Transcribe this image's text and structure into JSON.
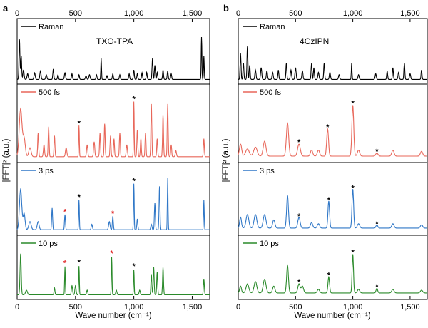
{
  "figure": {
    "panels": [
      {
        "letter": "a",
        "sample_label": "TXO-TPA",
        "ylabel": "|FFT|² (a.u.)",
        "xlabel": "Wave number (cm⁻¹)",
        "xlim": [
          0,
          1650
        ],
        "xticks": [
          0,
          500,
          1000,
          1500
        ],
        "xtick_labels": [
          "0",
          "500",
          "1,000",
          "1,500"
        ]
      },
      {
        "letter": "b",
        "sample_label": "4CzIPN",
        "ylabel": "|FFT|² (a.u.)",
        "xlabel": "Wave number (cm⁻¹)",
        "xlim": [
          0,
          1650
        ],
        "xticks": [
          0,
          500,
          1000,
          1500
        ],
        "xtick_labels": [
          "0",
          "500",
          "1,000",
          "1,500"
        ]
      }
    ]
  },
  "colors": {
    "raman": "#000000",
    "500fs": "#e8675a",
    "3ps": "#2f77c7",
    "10ps": "#2a8a2a",
    "star_black": "#000000",
    "star_red": "#e02020"
  },
  "chart_data": [
    {
      "type": "line",
      "panel": "a",
      "title": "TXO-TPA",
      "xlabel": "Wave number (cm⁻¹)",
      "ylabel": "|FFT|² (a.u.)",
      "xlim": [
        0,
        1650
      ],
      "series": [
        {
          "name": "Raman",
          "color_key": "raman",
          "baseline": 0.04,
          "peaks": [
            [
              20,
              0.85,
              4
            ],
            [
              35,
              0.5,
              4
            ],
            [
              55,
              0.2,
              5
            ],
            [
              90,
              0.12,
              5
            ],
            [
              150,
              0.14,
              5
            ],
            [
              200,
              0.18,
              5
            ],
            [
              250,
              0.1,
              5
            ],
            [
              310,
              0.22,
              4
            ],
            [
              350,
              0.1,
              4
            ],
            [
              410,
              0.14,
              5
            ],
            [
              470,
              0.12,
              4
            ],
            [
              530,
              0.1,
              4
            ],
            [
              590,
              0.08,
              5
            ],
            [
              620,
              0.1,
              5
            ],
            [
              680,
              0.1,
              4
            ],
            [
              720,
              0.45,
              3
            ],
            [
              770,
              0.08,
              4
            ],
            [
              820,
              0.12,
              4
            ],
            [
              880,
              0.1,
              4
            ],
            [
              960,
              0.12,
              4
            ],
            [
              1000,
              0.2,
              4
            ],
            [
              1030,
              0.12,
              4
            ],
            [
              1070,
              0.14,
              4
            ],
            [
              1110,
              0.15,
              4
            ],
            [
              1160,
              0.45,
              4
            ],
            [
              1180,
              0.3,
              4
            ],
            [
              1200,
              0.15,
              4
            ],
            [
              1250,
              0.2,
              4
            ],
            [
              1290,
              0.18,
              4
            ],
            [
              1320,
              0.12,
              4
            ],
            [
              1580,
              0.9,
              3
            ],
            [
              1600,
              0.5,
              3
            ]
          ],
          "stars": []
        },
        {
          "name": "500 fs",
          "color_key": "500fs",
          "baseline": 0.05,
          "peaks": [
            [
              30,
              0.8,
              12
            ],
            [
              60,
              0.3,
              10
            ],
            [
              110,
              0.15,
              10
            ],
            [
              180,
              0.4,
              4
            ],
            [
              230,
              0.2,
              5
            ],
            [
              270,
              0.5,
              4
            ],
            [
              320,
              0.35,
              4
            ],
            [
              420,
              0.15,
              6
            ],
            [
              530,
              0.52,
              3
            ],
            [
              600,
              0.2,
              5
            ],
            [
              660,
              0.25,
              5
            ],
            [
              710,
              0.4,
              4
            ],
            [
              750,
              0.55,
              4
            ],
            [
              800,
              0.35,
              4
            ],
            [
              830,
              0.3,
              4
            ],
            [
              880,
              0.4,
              4
            ],
            [
              940,
              0.2,
              5
            ],
            [
              1000,
              0.92,
              3
            ],
            [
              1030,
              0.45,
              4
            ],
            [
              1060,
              0.3,
              4
            ],
            [
              1100,
              0.4,
              4
            ],
            [
              1150,
              0.88,
              4
            ],
            [
              1200,
              0.3,
              4
            ],
            [
              1250,
              0.7,
              4
            ],
            [
              1290,
              0.88,
              4
            ],
            [
              1320,
              0.2,
              4
            ],
            [
              1360,
              0.1,
              5
            ],
            [
              1600,
              0.3,
              4
            ]
          ],
          "stars": [
            {
              "x": 530,
              "y": 0.52,
              "color": "star_black"
            },
            {
              "x": 1000,
              "y": 0.92,
              "color": "star_black"
            }
          ]
        },
        {
          "name": "3 ps",
          "color_key": "3ps",
          "baseline": 0.05,
          "peaks": [
            [
              30,
              0.75,
              10
            ],
            [
              60,
              0.3,
              8
            ],
            [
              110,
              0.15,
              10
            ],
            [
              180,
              0.15,
              8
            ],
            [
              300,
              0.4,
              4
            ],
            [
              410,
              0.28,
              4
            ],
            [
              530,
              0.55,
              3
            ],
            [
              640,
              0.1,
              5
            ],
            [
              790,
              0.15,
              6
            ],
            [
              820,
              0.25,
              4
            ],
            [
              1000,
              0.85,
              3
            ],
            [
              1030,
              0.2,
              4
            ],
            [
              1150,
              0.1,
              5
            ],
            [
              1180,
              0.5,
              4
            ],
            [
              1220,
              0.8,
              4
            ],
            [
              1290,
              0.95,
              3
            ],
            [
              1600,
              0.55,
              3
            ]
          ],
          "stars": [
            {
              "x": 410,
              "y": 0.28,
              "color": "star_red"
            },
            {
              "x": 530,
              "y": 0.55,
              "color": "star_black"
            },
            {
              "x": 820,
              "y": 0.25,
              "color": "star_red"
            },
            {
              "x": 1000,
              "y": 0.85,
              "color": "star_black"
            }
          ]
        },
        {
          "name": "10 ps",
          "color_key": "10ps",
          "baseline": 0.04,
          "peaks": [
            [
              30,
              0.9,
              5
            ],
            [
              80,
              0.1,
              8
            ],
            [
              320,
              0.15,
              4
            ],
            [
              410,
              0.62,
              3
            ],
            [
              470,
              0.2,
              5
            ],
            [
              500,
              0.2,
              5
            ],
            [
              530,
              0.63,
              3
            ],
            [
              600,
              0.1,
              5
            ],
            [
              810,
              0.83,
              3
            ],
            [
              850,
              0.1,
              5
            ],
            [
              1000,
              0.55,
              3
            ],
            [
              1050,
              0.1,
              5
            ],
            [
              1150,
              0.45,
              4
            ],
            [
              1170,
              0.6,
              4
            ],
            [
              1200,
              0.5,
              4
            ],
            [
              1250,
              0.6,
              4
            ],
            [
              1600,
              0.35,
              4
            ]
          ],
          "stars": [
            {
              "x": 410,
              "y": 0.62,
              "color": "star_red"
            },
            {
              "x": 530,
              "y": 0.63,
              "color": "star_black"
            },
            {
              "x": 810,
              "y": 0.83,
              "color": "star_red"
            },
            {
              "x": 1000,
              "y": 0.55,
              "color": "star_black"
            }
          ]
        }
      ]
    },
    {
      "type": "line",
      "panel": "b",
      "title": "4CzIPN",
      "xlabel": "Wave number (cm⁻¹)",
      "ylabel": "|FFT|² (a.u.)",
      "xlim": [
        0,
        1650
      ],
      "series": [
        {
          "name": "Raman",
          "color_key": "raman",
          "baseline": 0.04,
          "peaks": [
            [
              20,
              0.55,
              4
            ],
            [
              45,
              0.35,
              4
            ],
            [
              80,
              0.7,
              4
            ],
            [
              100,
              0.3,
              4
            ],
            [
              150,
              0.2,
              5
            ],
            [
              200,
              0.25,
              5
            ],
            [
              250,
              0.18,
              5
            ],
            [
              300,
              0.15,
              5
            ],
            [
              350,
              0.2,
              4
            ],
            [
              420,
              0.35,
              4
            ],
            [
              460,
              0.2,
              5
            ],
            [
              500,
              0.25,
              5
            ],
            [
              560,
              0.18,
              5
            ],
            [
              640,
              0.35,
              4
            ],
            [
              660,
              0.25,
              4
            ],
            [
              700,
              0.15,
              5
            ],
            [
              750,
              0.35,
              4
            ],
            [
              800,
              0.15,
              5
            ],
            [
              880,
              0.1,
              5
            ],
            [
              990,
              0.35,
              3
            ],
            [
              1050,
              0.1,
              5
            ],
            [
              1200,
              0.12,
              5
            ],
            [
              1300,
              0.18,
              4
            ],
            [
              1350,
              0.25,
              4
            ],
            [
              1400,
              0.15,
              5
            ],
            [
              1450,
              0.35,
              4
            ],
            [
              1500,
              0.12,
              5
            ],
            [
              1600,
              0.2,
              4
            ]
          ],
          "stars": []
        },
        {
          "name": "500 fs",
          "color_key": "500fs",
          "baseline": 0.06,
          "peaks": [
            [
              20,
              0.2,
              10
            ],
            [
              80,
              0.12,
              15
            ],
            [
              150,
              0.15,
              15
            ],
            [
              230,
              0.25,
              12
            ],
            [
              430,
              0.55,
              10
            ],
            [
              530,
              0.2,
              12
            ],
            [
              640,
              0.1,
              10
            ],
            [
              700,
              0.1,
              10
            ],
            [
              780,
              0.45,
              8
            ],
            [
              1000,
              0.85,
              8
            ],
            [
              1050,
              0.1,
              10
            ],
            [
              1210,
              0.05,
              10
            ],
            [
              1350,
              0.1,
              10
            ],
            [
              1600,
              0.08,
              10
            ]
          ],
          "stars": [
            {
              "x": 530,
              "y": 0.2,
              "color": "star_black"
            },
            {
              "x": 780,
              "y": 0.45,
              "color": "star_black"
            },
            {
              "x": 1000,
              "y": 0.85,
              "color": "star_black"
            },
            {
              "x": 1210,
              "y": 0.05,
              "color": "star_black"
            }
          ]
        },
        {
          "name": "3 ps",
          "color_key": "3ps",
          "baseline": 0.08,
          "peaks": [
            [
              20,
              0.2,
              8
            ],
            [
              80,
              0.25,
              12
            ],
            [
              150,
              0.25,
              12
            ],
            [
              230,
              0.25,
              12
            ],
            [
              310,
              0.15,
              10
            ],
            [
              430,
              0.6,
              8
            ],
            [
              530,
              0.2,
              10
            ],
            [
              640,
              0.1,
              10
            ],
            [
              700,
              0.08,
              10
            ],
            [
              790,
              0.5,
              7
            ],
            [
              1000,
              0.72,
              7
            ],
            [
              1050,
              0.08,
              10
            ],
            [
              1210,
              0.06,
              8
            ],
            [
              1350,
              0.08,
              10
            ],
            [
              1600,
              0.06,
              10
            ]
          ],
          "stars": [
            {
              "x": 530,
              "y": 0.2,
              "color": "star_black"
            },
            {
              "x": 790,
              "y": 0.5,
              "color": "star_black"
            },
            {
              "x": 1000,
              "y": 0.72,
              "color": "star_black"
            },
            {
              "x": 1210,
              "y": 0.06,
              "color": "star_black"
            }
          ]
        },
        {
          "name": "10 ps",
          "color_key": "10ps",
          "baseline": 0.08,
          "peaks": [
            [
              20,
              0.15,
              8
            ],
            [
              80,
              0.2,
              12
            ],
            [
              150,
              0.25,
              12
            ],
            [
              230,
              0.3,
              12
            ],
            [
              310,
              0.15,
              10
            ],
            [
              430,
              0.6,
              8
            ],
            [
              530,
              0.2,
              10
            ],
            [
              560,
              0.15,
              10
            ],
            [
              700,
              0.08,
              10
            ],
            [
              790,
              0.35,
              7
            ],
            [
              1000,
              0.85,
              6
            ],
            [
              1050,
              0.08,
              10
            ],
            [
              1210,
              0.1,
              7
            ],
            [
              1350,
              0.08,
              10
            ],
            [
              1600,
              0.06,
              10
            ]
          ],
          "stars": [
            {
              "x": 530,
              "y": 0.2,
              "color": "star_black"
            },
            {
              "x": 790,
              "y": 0.35,
              "color": "star_black"
            },
            {
              "x": 1000,
              "y": 0.85,
              "color": "star_black"
            },
            {
              "x": 1210,
              "y": 0.1,
              "color": "star_black"
            }
          ]
        }
      ]
    }
  ]
}
